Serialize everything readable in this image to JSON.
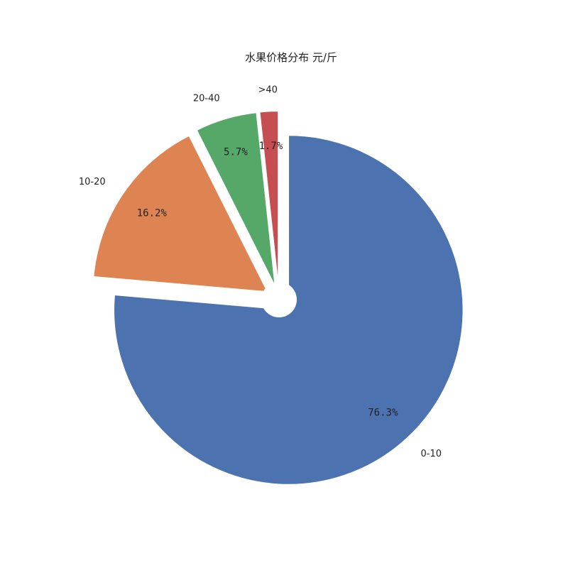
{
  "chart_data": {
    "type": "pie",
    "title": "水果价格分布 元/斤",
    "categories": [
      "0-10",
      "10-20",
      "20-40",
      ">40"
    ],
    "values": [
      76.3,
      16.2,
      5.7,
      1.7
    ],
    "value_labels": [
      "76.3%",
      "16.2%",
      "5.7%",
      "1.7%"
    ],
    "colors": [
      "#4c72b0",
      "#dd8452",
      "#55a868",
      "#c44e52"
    ],
    "exploded": [
      "0-10",
      "10-20",
      "20-40",
      ">40"
    ],
    "donut_hole": true,
    "start_angle": "top (12 o'clock)",
    "direction": "clockwise, largest slice first",
    "legend": "none",
    "grid": false
  }
}
